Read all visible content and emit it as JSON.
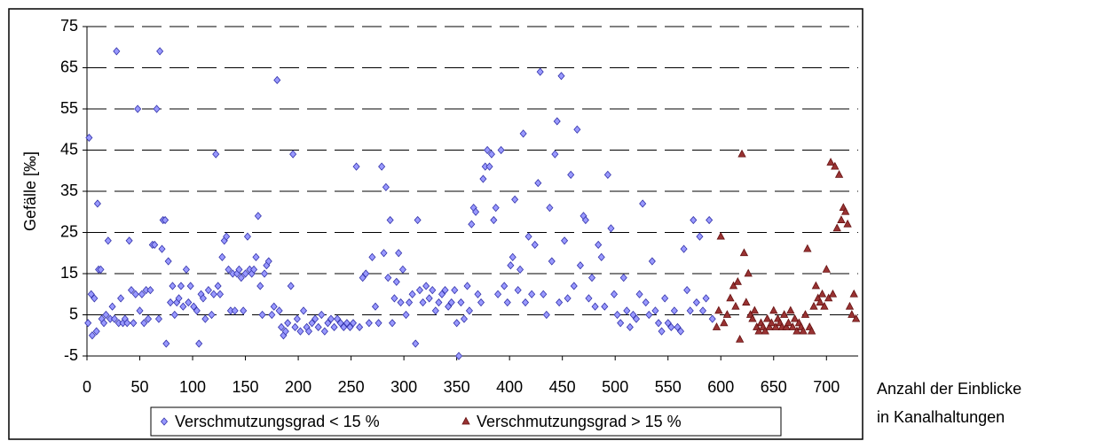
{
  "chart_data": {
    "type": "scatter",
    "y_label": "Gefälle [‰]",
    "x_label": [
      "Anzahl der Einblicke",
      "in Kanalhaltungen"
    ],
    "xlim": [
      0,
      730
    ],
    "xticks": [
      0,
      50,
      100,
      150,
      200,
      250,
      300,
      350,
      400,
      450,
      500,
      550,
      600,
      650,
      700
    ],
    "ylim": [
      -5,
      75
    ],
    "yticks": [
      -5,
      5,
      15,
      25,
      35,
      45,
      55,
      65,
      75
    ],
    "grid": true,
    "legend": "bottom",
    "series": [
      {
        "name": "Verschmutzungsgrad < 15 %",
        "color": "#9999ff",
        "marker": "diamond",
        "x": [
          1,
          2,
          4,
          5,
          7,
          9,
          10,
          11,
          13,
          14,
          16,
          18,
          20,
          22,
          24,
          26,
          28,
          30,
          32,
          34,
          36,
          38,
          40,
          42,
          44,
          46,
          48,
          50,
          52,
          54,
          56,
          58,
          60,
          62,
          64,
          66,
          68,
          69,
          71,
          72,
          74,
          75,
          77,
          79,
          81,
          83,
          85,
          87,
          89,
          91,
          94,
          96,
          98,
          101,
          104,
          106,
          108,
          110,
          112,
          115,
          118,
          120,
          122,
          124,
          126,
          128,
          130,
          132,
          134,
          136,
          138,
          140,
          142,
          144,
          146,
          148,
          150,
          152,
          154,
          156,
          158,
          160,
          162,
          164,
          166,
          168,
          170,
          172,
          175,
          177,
          180,
          182,
          184,
          186,
          188,
          190,
          193,
          195,
          197,
          199,
          202,
          205,
          208,
          210,
          213,
          216,
          219,
          222,
          225,
          228,
          231,
          234,
          237,
          240,
          243,
          246,
          249,
          252,
          255,
          258,
          261,
          264,
          267,
          270,
          273,
          276,
          279,
          281,
          283,
          285,
          287,
          289,
          291,
          293,
          295,
          297,
          299,
          302,
          305,
          308,
          311,
          313,
          315,
          318,
          321,
          324,
          327,
          330,
          333,
          336,
          339,
          342,
          345,
          348,
          350,
          352,
          354,
          357,
          360,
          362,
          364,
          366,
          368,
          370,
          373,
          375,
          377,
          379,
          381,
          383,
          385,
          387,
          389,
          392,
          395,
          398,
          401,
          403,
          405,
          408,
          410,
          413,
          415,
          418,
          421,
          424,
          427,
          429,
          432,
          435,
          438,
          440,
          443,
          445,
          447,
          449,
          452,
          455,
          458,
          461,
          464,
          467,
          470,
          472,
          475,
          478,
          481,
          484,
          487,
          490,
          493,
          496,
          499,
          502,
          505,
          508,
          511,
          514,
          517,
          520,
          523,
          526,
          529,
          532,
          535,
          538,
          541,
          544,
          547,
          550,
          553,
          556,
          559,
          562,
          565,
          568,
          571,
          574,
          577,
          580,
          583,
          586,
          589,
          592
        ],
        "values": [
          3,
          48,
          10,
          0,
          9,
          1,
          32,
          16,
          16,
          4,
          3,
          5,
          23,
          4,
          7,
          4,
          69,
          3,
          9,
          3,
          4,
          3,
          23,
          11,
          3,
          10,
          55,
          6,
          10,
          3,
          11,
          4,
          11,
          22,
          22,
          55,
          4,
          69,
          21,
          28,
          28,
          -2,
          18,
          8,
          12,
          5,
          8,
          9,
          12,
          7,
          16,
          8,
          12,
          7,
          6,
          -2,
          10,
          9,
          4,
          11,
          5,
          10,
          44,
          12,
          10,
          19,
          23,
          24,
          16,
          6,
          15,
          6,
          15,
          16,
          14,
          6,
          15,
          24,
          16,
          15,
          16,
          19,
          29,
          12,
          5,
          15,
          17,
          18,
          5,
          7,
          62,
          6,
          2,
          0,
          1,
          3,
          12,
          44,
          2,
          4,
          1,
          6,
          2,
          1,
          3,
          4,
          2,
          5,
          1,
          3,
          4,
          2,
          4,
          3,
          2,
          3,
          2,
          3,
          41,
          2,
          14,
          15,
          3,
          19,
          7,
          3,
          41,
          20,
          36,
          14,
          28,
          3,
          9,
          13,
          20,
          8,
          16,
          5,
          8,
          10,
          -2,
          28,
          11,
          8,
          12,
          9,
          11,
          6,
          8,
          10,
          11,
          7,
          8,
          11,
          3,
          -5,
          8,
          4,
          12,
          6,
          27,
          31,
          30,
          10,
          8,
          38,
          41,
          45,
          41,
          44,
          28,
          31,
          10,
          45,
          12,
          8,
          17,
          19,
          33,
          11,
          16,
          49,
          8,
          24,
          10,
          22,
          37,
          64,
          10,
          5,
          31,
          18,
          44,
          52,
          8,
          63,
          23,
          9,
          39,
          12,
          50,
          17,
          29,
          28,
          9,
          14,
          7,
          22,
          19,
          7,
          39,
          26,
          10,
          5,
          3,
          14,
          6,
          2,
          5,
          4,
          10,
          32,
          8,
          5,
          18,
          6,
          3,
          1,
          9,
          3,
          2,
          6,
          2,
          1,
          21,
          11,
          6,
          28,
          8,
          24,
          6,
          9,
          28,
          4
        ]
      },
      {
        "name": "Verschmutzungsgrad > 15 %",
        "color": "#993333",
        "marker": "triangle",
        "x": [
          596,
          598,
          600,
          603,
          606,
          609,
          612,
          614,
          616,
          618,
          620,
          622,
          624,
          626,
          628,
          630,
          632,
          634,
          636,
          638,
          640,
          642,
          644,
          646,
          648,
          650,
          652,
          654,
          656,
          658,
          660,
          662,
          664,
          666,
          668,
          670,
          672,
          674,
          676,
          678,
          680,
          682,
          684,
          686,
          688,
          690,
          692,
          694,
          696,
          698,
          700,
          702,
          704,
          706,
          708,
          710,
          712,
          714,
          716,
          718,
          720,
          722,
          724,
          726,
          728
        ],
        "values": [
          2,
          6,
          24,
          3,
          5,
          9,
          12,
          7,
          13,
          -1,
          44,
          20,
          8,
          15,
          5,
          4,
          6,
          2,
          1,
          3,
          2,
          1,
          4,
          2,
          3,
          6,
          2,
          4,
          3,
          2,
          5,
          2,
          3,
          6,
          2,
          4,
          1,
          3,
          2,
          1,
          5,
          21,
          2,
          1,
          7,
          12,
          9,
          8,
          10,
          7,
          16,
          9,
          42,
          10,
          41,
          26,
          39,
          28,
          31,
          30,
          27,
          7,
          5,
          10,
          4
        ]
      }
    ]
  }
}
